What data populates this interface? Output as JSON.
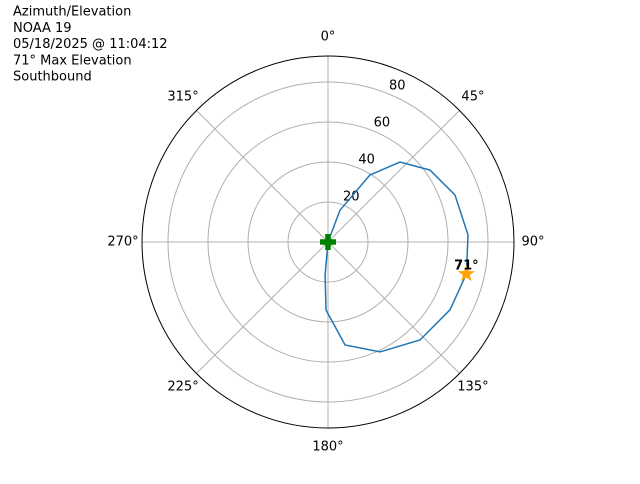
{
  "chart_data": {
    "type": "polar",
    "title_lines": [
      "Azimuth/Elevation",
      "NOAA 19",
      "05/18/2025 @ 11:04:12",
      "71° Max Elevation",
      "Southbound"
    ],
    "xticks": [
      {
        "value": 0,
        "label": "0°"
      },
      {
        "value": 45,
        "label": "45°"
      },
      {
        "value": 90,
        "label": "90°"
      },
      {
        "value": 135,
        "label": "135°"
      },
      {
        "value": 180,
        "label": "180°"
      },
      {
        "value": 225,
        "label": "225°"
      },
      {
        "value": 270,
        "label": "270°"
      },
      {
        "value": 315,
        "label": "315°"
      }
    ],
    "rlim": [
      0,
      93
    ],
    "rticks": [
      20,
      40,
      60,
      80
    ],
    "grid": true,
    "series": [
      {
        "color": "#1f77b4",
        "marker": "line",
        "theta": [
          0,
          20.6,
          32,
          42,
          54.8,
          69.7,
          87.1,
          103,
          119,
          136.8,
          154.7,
          170.6,
          181.7,
          185,
          0
        ],
        "values": [
          0,
          17,
          39.5,
          53.8,
          62.4,
          67.7,
          70.1,
          71,
          69.8,
          67.2,
          60.8,
          52.2,
          34,
          16.6,
          0
        ]
      },
      {
        "color": "#ffa500",
        "marker": "star",
        "theta": [
          103
        ],
        "values": [
          71
        ],
        "value_labels": [
          "71°"
        ]
      },
      {
        "color": "#008000",
        "marker": "plus",
        "theta": [
          0
        ],
        "values": [
          0
        ]
      }
    ]
  }
}
